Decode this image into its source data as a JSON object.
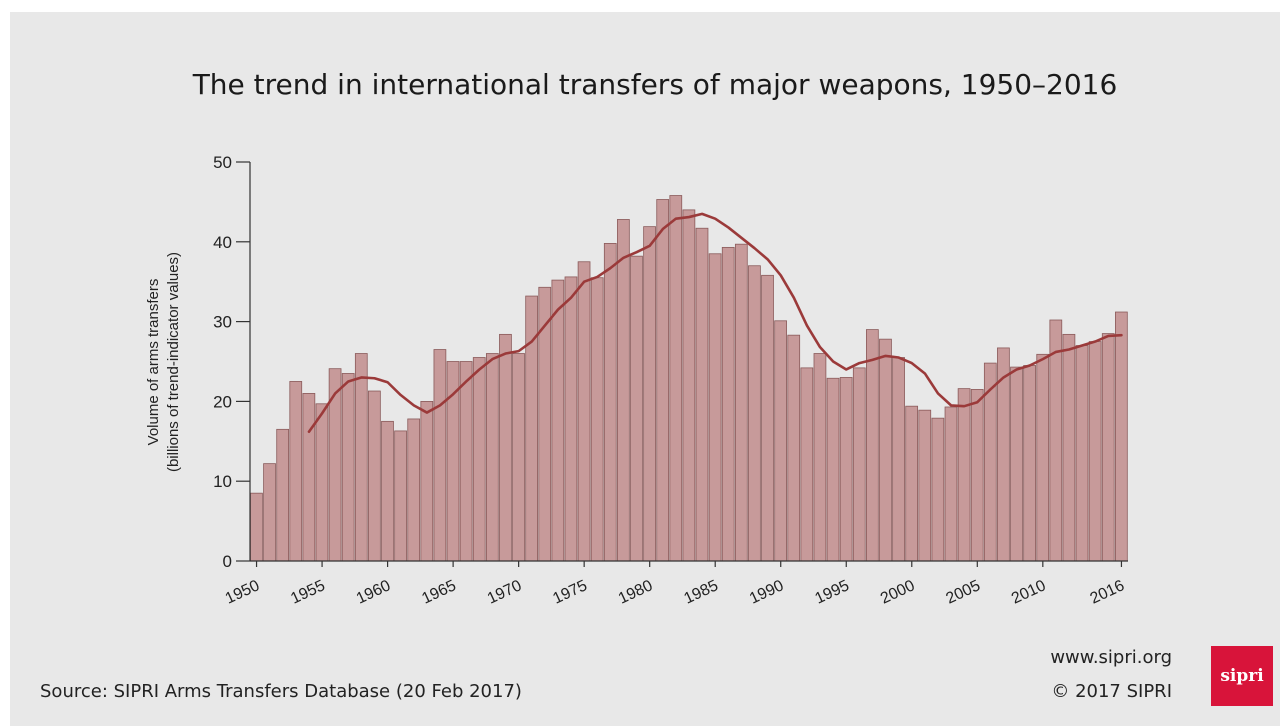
{
  "colors": {
    "background": "#e8e8e8",
    "bar_fill": "#c79a9a",
    "bar_stroke": "#8a5a5a",
    "trend_line": "#9b3a3a",
    "axis": "#333333",
    "logo": "#d8143a"
  },
  "header": {
    "title": "The trend in international transfers of major weapons, 1950–2016"
  },
  "footer": {
    "source": "Source: SIPRI Arms Transfers Database (20 Feb 2017)",
    "website": "www.sipri.org",
    "copyright": "© 2017 SIPRI",
    "logo_text": "sipri"
  },
  "chart_data": {
    "type": "bar",
    "xlabel": "",
    "ylabel_line1": "Volume of arms transfers",
    "ylabel_line2": "(billions of trend-indicator values)",
    "ylim": [
      0,
      50
    ],
    "yticks": [
      0,
      10,
      20,
      30,
      40,
      50
    ],
    "xtick_labels": [
      "1950",
      "1955",
      "1960",
      "1965",
      "1970",
      "1975",
      "1980",
      "1985",
      "1990",
      "1995",
      "2000",
      "2005",
      "2010",
      "2016"
    ],
    "grid": false,
    "categories": [
      1950,
      1951,
      1952,
      1953,
      1954,
      1955,
      1956,
      1957,
      1958,
      1959,
      1960,
      1961,
      1962,
      1963,
      1964,
      1965,
      1966,
      1967,
      1968,
      1969,
      1970,
      1971,
      1972,
      1973,
      1974,
      1975,
      1976,
      1977,
      1978,
      1979,
      1980,
      1981,
      1982,
      1983,
      1984,
      1985,
      1986,
      1987,
      1988,
      1989,
      1990,
      1991,
      1992,
      1993,
      1994,
      1995,
      1996,
      1997,
      1998,
      1999,
      2000,
      2001,
      2002,
      2003,
      2004,
      2005,
      2006,
      2007,
      2008,
      2009,
      2010,
      2011,
      2012,
      2013,
      2014,
      2015,
      2016
    ],
    "series": [
      {
        "type": "bar",
        "values": [
          8.5,
          12.2,
          16.5,
          22.5,
          21.0,
          19.7,
          24.1,
          23.5,
          26.0,
          21.3,
          17.5,
          16.3,
          17.8,
          20.0,
          26.5,
          25.0,
          25.0,
          25.5,
          26.0,
          28.4,
          26.0,
          33.2,
          34.3,
          35.2,
          35.6,
          37.5,
          35.5,
          39.8,
          42.8,
          38.2,
          41.9,
          45.3,
          45.8,
          44.0,
          41.7,
          38.5,
          39.3,
          39.7,
          37.0,
          35.8,
          30.1,
          28.3,
          24.2,
          26.0,
          22.9,
          23.0,
          24.2,
          29.0,
          27.8,
          25.5,
          19.4,
          18.9,
          17.9,
          19.3,
          21.6,
          21.5,
          24.8,
          26.7,
          24.3,
          24.5,
          25.9,
          30.2,
          28.4,
          27.0,
          27.5,
          28.5,
          31.2
        ]
      },
      {
        "type": "line",
        "label": "trend",
        "x": [
          1954,
          1955,
          1956,
          1957,
          1958,
          1959,
          1960,
          1961,
          1962,
          1963,
          1964,
          1965,
          1966,
          1967,
          1968,
          1969,
          1970,
          1971,
          1972,
          1973,
          1974,
          1975,
          1976,
          1977,
          1978,
          1979,
          1980,
          1981,
          1982,
          1983,
          1984,
          1985,
          1986,
          1987,
          1988,
          1989,
          1990,
          1991,
          1992,
          1993,
          1994,
          1995,
          1996,
          1997,
          1998,
          1999,
          2000,
          2001,
          2002,
          2003,
          2004,
          2005,
          2006,
          2007,
          2008,
          2009,
          2010,
          2011,
          2012,
          2013,
          2014,
          2015,
          2016
        ],
        "values": [
          16.2,
          18.5,
          21.0,
          22.5,
          23.0,
          22.9,
          22.4,
          20.8,
          19.5,
          18.6,
          19.5,
          20.9,
          22.5,
          24.0,
          25.3,
          26.0,
          26.3,
          27.5,
          29.5,
          31.5,
          33.0,
          35.0,
          35.6,
          36.7,
          38.0,
          38.7,
          39.5,
          41.6,
          42.9,
          43.1,
          43.5,
          42.9,
          41.8,
          40.5,
          39.2,
          37.8,
          35.8,
          33.0,
          29.5,
          26.8,
          25.0,
          24.0,
          24.8,
          25.2,
          25.7,
          25.5,
          24.8,
          23.5,
          21.0,
          19.5,
          19.4,
          19.9,
          21.5,
          23.0,
          24.0,
          24.5,
          25.3,
          26.2,
          26.5,
          27.0,
          27.5,
          28.2,
          28.3
        ]
      }
    ]
  }
}
